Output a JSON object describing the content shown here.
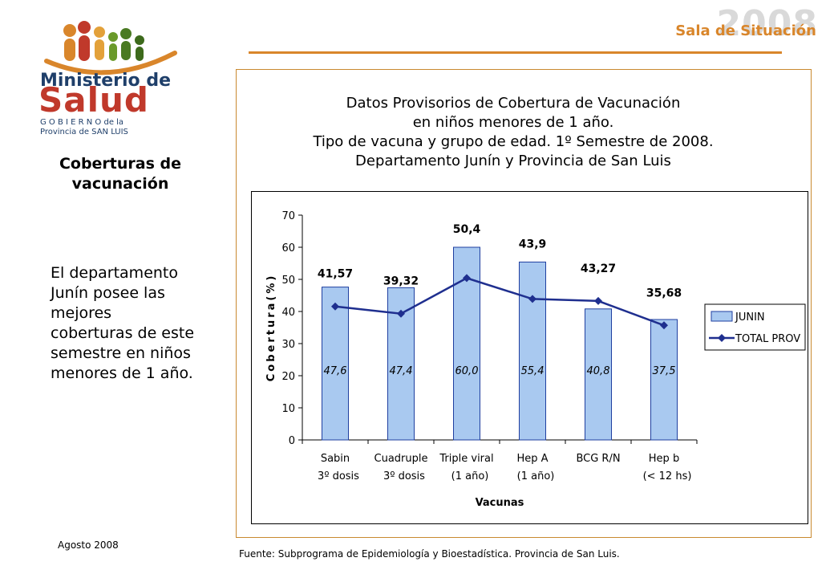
{
  "header": {
    "year": "2008",
    "subtitle": "Sala de Situación",
    "logo_text": [
      "Ministerio de",
      "Salud",
      "G O B I E R N O  de la",
      "Provincia de SAN LUIS"
    ]
  },
  "sidebar": {
    "title": "Coberturas de vacunación",
    "body": "El departamento Junín posee las mejores coberturas de este semestre en niños menores de 1 año.",
    "date": "Agosto 2008"
  },
  "source": "Fuente: Subprograma de Epidemiología y Bioestadística. Provincia de San Luis.",
  "colors": {
    "accent": "#d9862b",
    "bar_fill": "#a9c9f0",
    "bar_stroke": "#1f3fa0",
    "line": "#1f2f8f"
  },
  "chart_data": {
    "type": "bar",
    "title_lines": [
      "Datos Provisorios de Cobertura de Vacunación",
      "en niños menores de 1 año.",
      "Tipo de vacuna y grupo de edad. 1º Semestre de 2008.",
      "Departamento Junín y Provincia de San Luis"
    ],
    "categories": [
      [
        "Sabin",
        "3º dosis"
      ],
      [
        "Cuadruple",
        "3º dosis"
      ],
      [
        "Triple viral",
        "(1 año)"
      ],
      [
        "Hep A",
        "(1 año)"
      ],
      [
        "BCG R/N",
        ""
      ],
      [
        "Hep b",
        "(< 12 hs)"
      ]
    ],
    "series": [
      {
        "name": "JUNIN",
        "type": "bar",
        "values": [
          47.6,
          47.4,
          60.0,
          55.4,
          40.8,
          37.5
        ],
        "labels": [
          "47,6",
          "47,4",
          "60,0",
          "55,4",
          "40,8",
          "37,5"
        ]
      },
      {
        "name": "TOTAL PROV",
        "type": "line",
        "values": [
          41.57,
          39.32,
          50.4,
          43.9,
          43.27,
          35.68
        ],
        "labels": [
          "41,57",
          "39,32",
          "50,4",
          "43,9",
          "43,27",
          "35,68"
        ]
      }
    ],
    "xlabel": "Vacunas",
    "ylabel": "Cobertura(%)",
    "ylim": [
      0,
      70
    ],
    "yticks": [
      0,
      10,
      20,
      30,
      40,
      50,
      60,
      70
    ],
    "legend": "right"
  }
}
